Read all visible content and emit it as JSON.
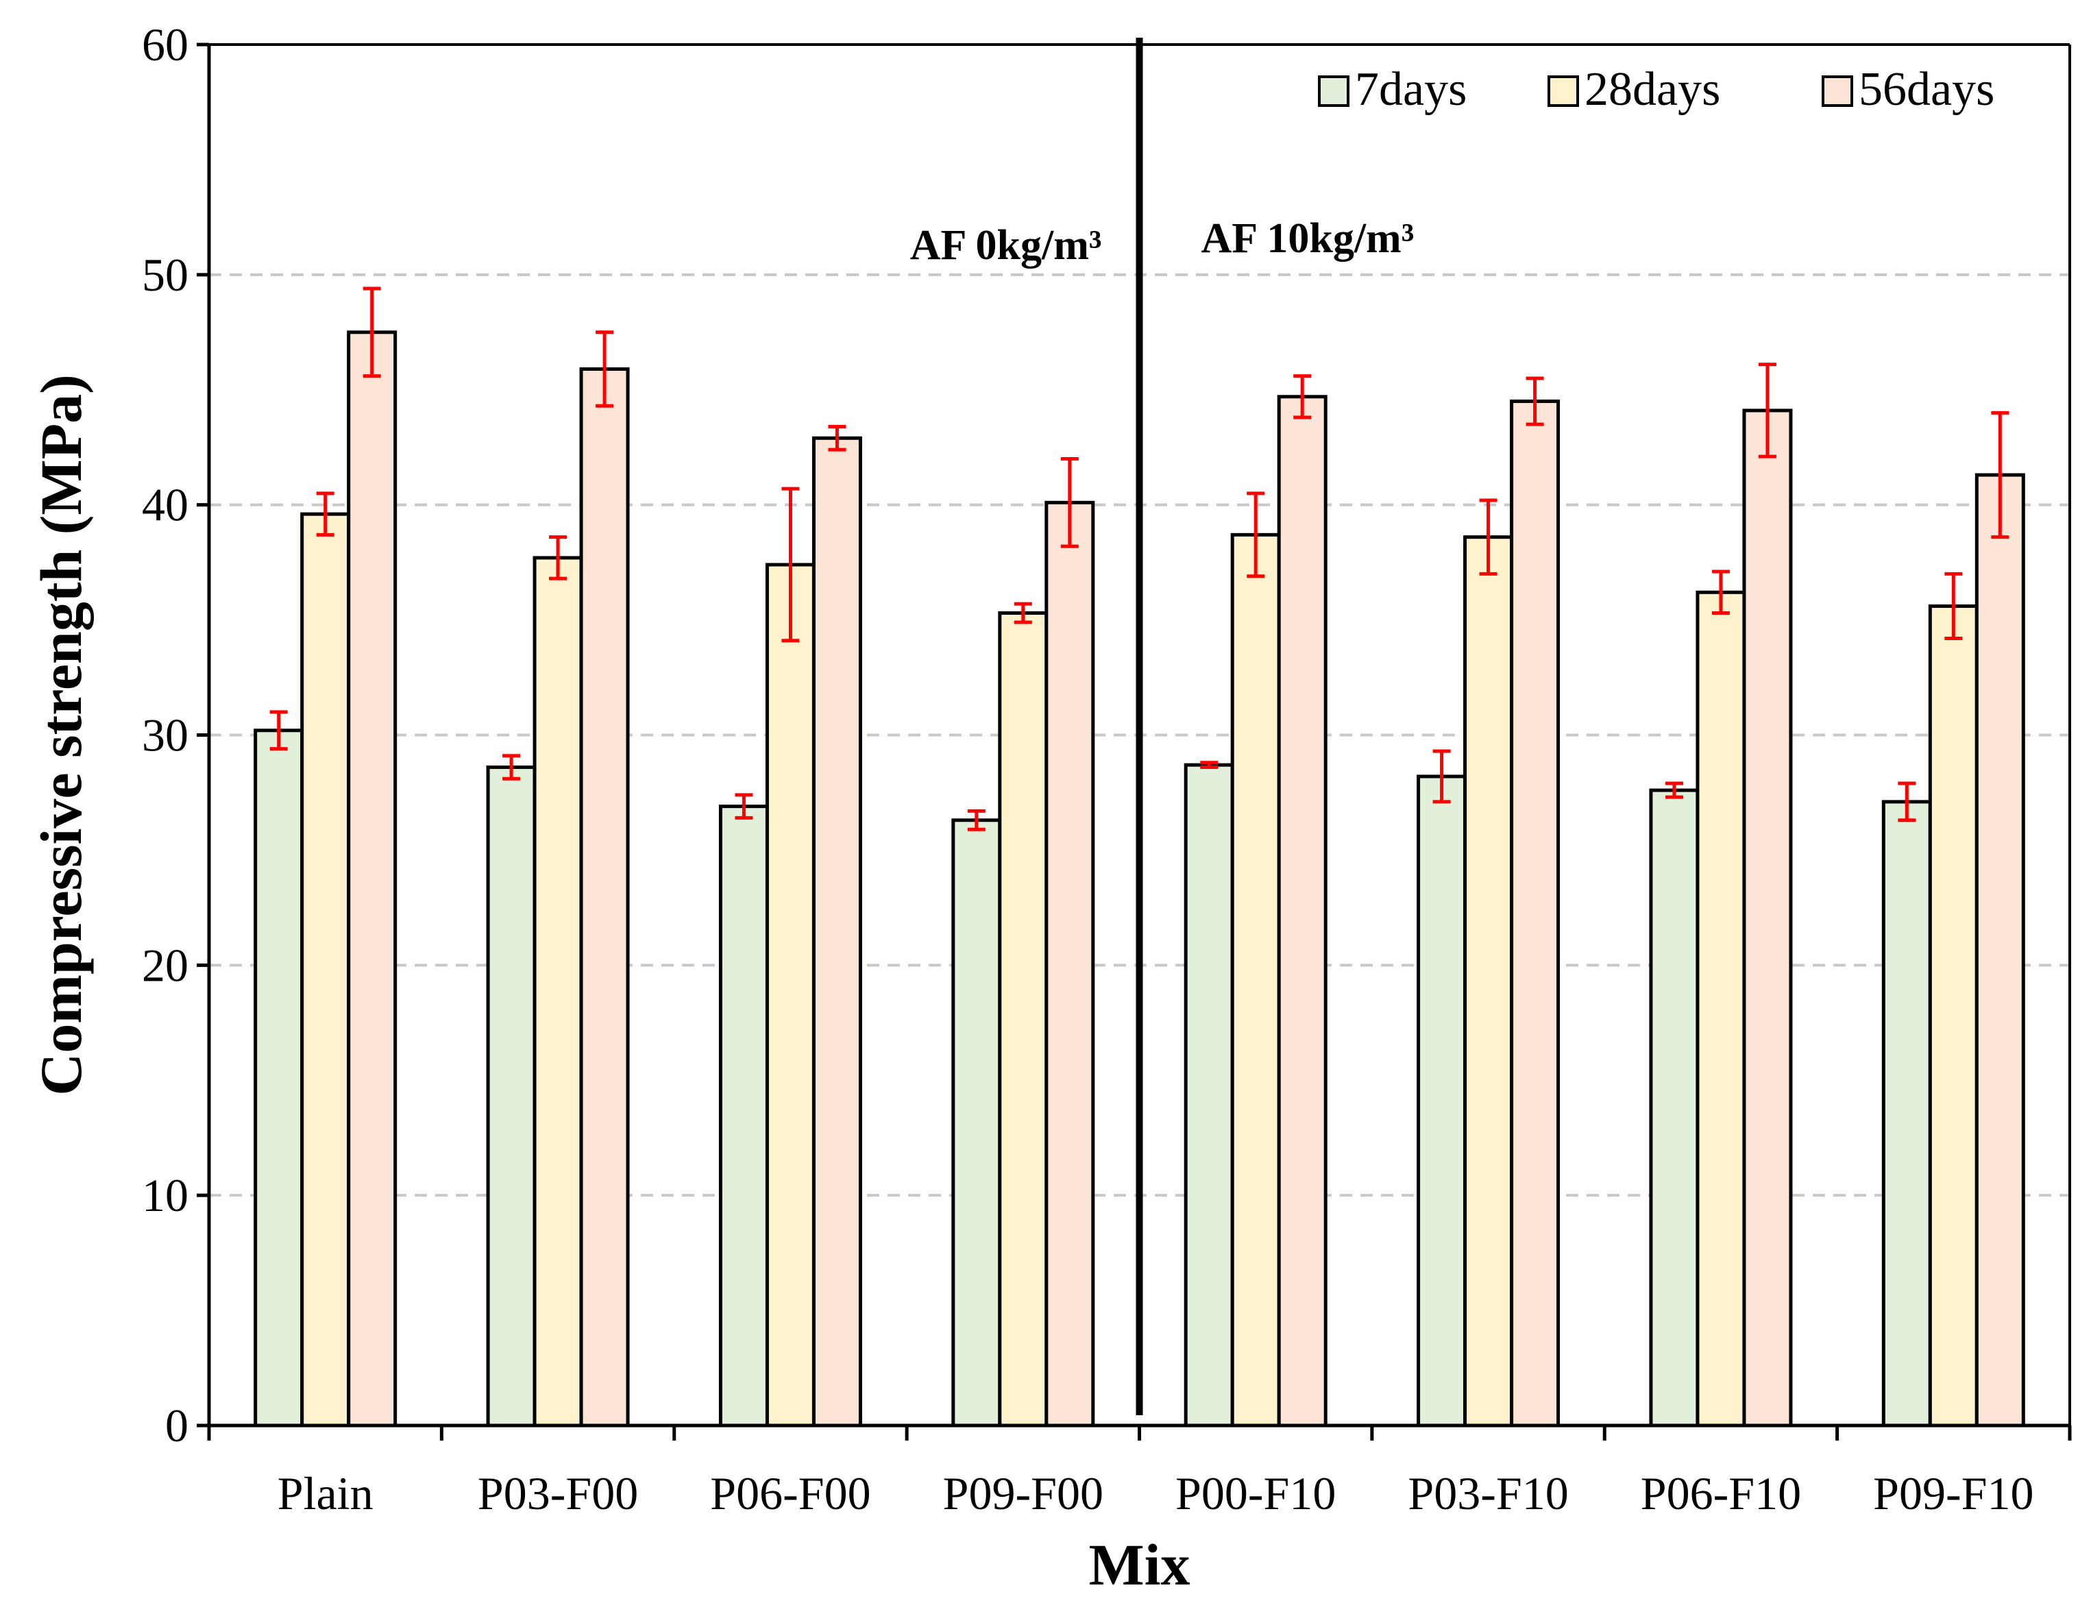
{
  "chart_data": {
    "type": "bar",
    "title": "",
    "xlabel": "Mix",
    "ylabel": "Compressive strength (MPa)",
    "ylim": [
      0,
      60
    ],
    "yticks": [
      "0",
      "10",
      "20",
      "30",
      "40",
      "50",
      "60"
    ],
    "grid": "horizontal dashed",
    "legend_position": "top-right",
    "categories": [
      "Plain",
      "P03-F00",
      "P06-F00",
      "P09-F00",
      "P00-F10",
      "P03-F10",
      "P06-F10",
      "P09-F10"
    ],
    "series": [
      {
        "name": "7days",
        "color": "#E2EFDA",
        "values": [
          30.2,
          28.6,
          26.9,
          26.3,
          28.7,
          28.2,
          27.6,
          27.1
        ],
        "errors": [
          0.8,
          0.5,
          0.5,
          0.4,
          0.1,
          1.1,
          0.3,
          0.8
        ]
      },
      {
        "name": "28days",
        "color": "#FFF2CC",
        "values": [
          39.6,
          37.7,
          37.4,
          35.3,
          38.7,
          38.6,
          36.2,
          35.6
        ],
        "errors": [
          0.9,
          0.9,
          3.3,
          0.4,
          1.8,
          1.6,
          0.9,
          1.4
        ]
      },
      {
        "name": "56days",
        "color": "#FCE4D6",
        "values": [
          47.5,
          45.9,
          42.9,
          40.1,
          44.7,
          44.5,
          44.1,
          41.3
        ],
        "errors": [
          1.9,
          1.6,
          0.5,
          1.9,
          0.9,
          1.0,
          2.0,
          2.7
        ]
      }
    ],
    "error_bar_color": "#FF0000",
    "divider_after_category": 4,
    "annotations": {
      "left_group": "AF 0kg/m³",
      "right_group": "AF 10kg/m³"
    }
  }
}
